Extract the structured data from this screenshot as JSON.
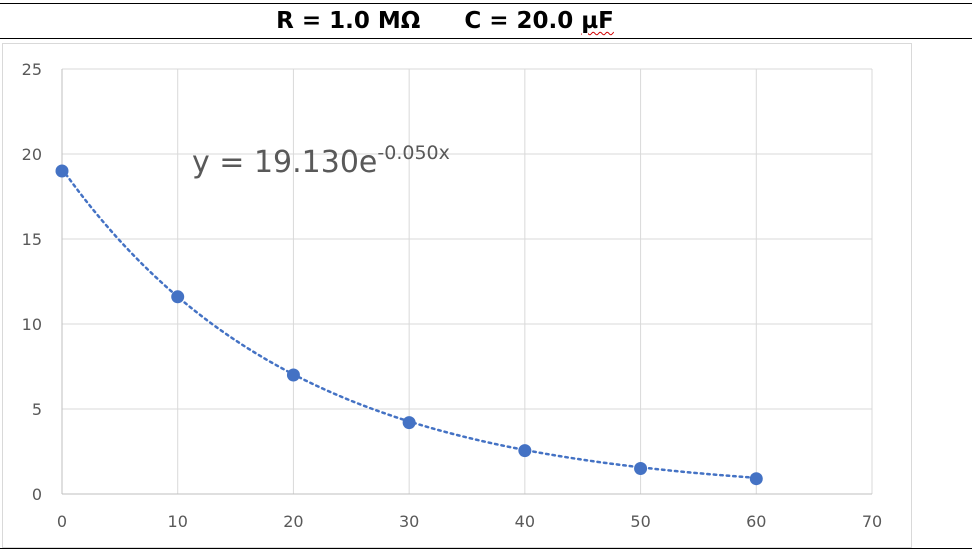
{
  "header": {
    "resistance": "R = 1.0 MΩ",
    "capacitance_prefix": "C = 20.0 ",
    "capacitance_unit": "µF"
  },
  "chart_data": {
    "type": "scatter",
    "title": "",
    "xlabel": "",
    "ylabel": "",
    "xlim": [
      0,
      70
    ],
    "ylim": [
      0,
      25
    ],
    "x_ticks": [
      0,
      10,
      20,
      30,
      40,
      50,
      60,
      70
    ],
    "y_ticks": [
      0,
      5,
      10,
      15,
      20,
      25
    ],
    "grid": true,
    "legend": "none",
    "series": [
      {
        "x": [
          0,
          10,
          20,
          30,
          40,
          50,
          60
        ],
        "y": [
          19.0,
          11.6,
          7.0,
          4.2,
          2.55,
          1.5,
          0.9
        ],
        "color": "#4472c4",
        "marker": "circle"
      }
    ],
    "trendline": {
      "type": "exponential",
      "a": 19.13,
      "b": -0.05,
      "style": "dotted",
      "color": "#4472c4",
      "x_range": [
        0,
        60
      ],
      "label_main": "y = 19.130e",
      "label_exponent": "-0.050x"
    }
  }
}
